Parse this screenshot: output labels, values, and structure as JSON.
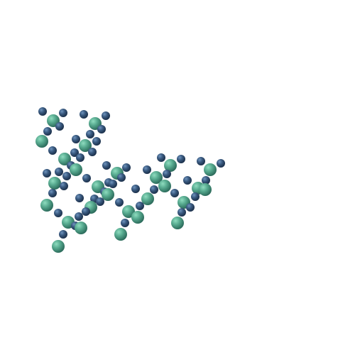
{
  "scene": {
    "description_visible": "",
    "background_color": "#ffffff",
    "palette": {
      "small_sphere": {
        "highlight": "#5a7ea6",
        "base": "#2f4d70",
        "shade": "#1c3350"
      },
      "large_sphere": {
        "highlight": "#7dcfb0",
        "base": "#52a88d",
        "shade": "#2f6e5f"
      }
    }
  }
}
